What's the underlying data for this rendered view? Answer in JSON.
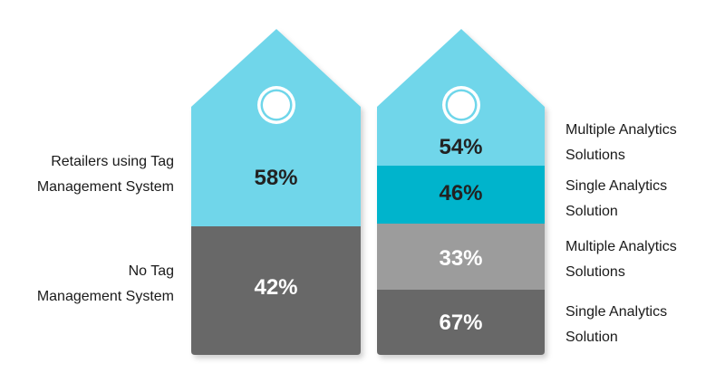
{
  "colors": {
    "light_blue": "#6fd6ea",
    "teal": "#04b4cc",
    "dark_gray": "#676767",
    "light_gray": "#9c9c9c",
    "label_dark": "#222222",
    "label_light": "#ffffff"
  },
  "left_tag": {
    "top_pct": "58%",
    "bottom_pct": "42%",
    "top_label": [
      "Retailers using Tag",
      "Management System"
    ],
    "bottom_label": [
      "No Tag",
      "Management System"
    ]
  },
  "right_tag": {
    "seg1_pct": "54%",
    "seg2_pct": "46%",
    "seg3_pct": "33%",
    "seg4_pct": "67%",
    "seg1_label": [
      "Multiple Analytics",
      "Solutions"
    ],
    "seg2_label": [
      "Single Analytics",
      "Solution"
    ],
    "seg3_label": [
      "Multiple Analytics",
      "Solutions"
    ],
    "seg4_label": [
      "Single Analytics",
      "Solution"
    ]
  },
  "chart_data": {
    "type": "bar",
    "categories": [
      "Retailers using Tag Management System",
      "No Tag Management System"
    ],
    "values": [
      58,
      42
    ],
    "breakdown": [
      {
        "category": "Retailers using Tag Management System",
        "segments": [
          {
            "label": "Multiple Analytics Solutions",
            "value": 54
          },
          {
            "label": "Single Analytics Solution",
            "value": 46
          }
        ]
      },
      {
        "category": "No Tag Management System",
        "segments": [
          {
            "label": "Multiple Analytics Solutions",
            "value": 33
          },
          {
            "label": "Single Analytics Solution",
            "value": 67
          }
        ]
      }
    ]
  }
}
